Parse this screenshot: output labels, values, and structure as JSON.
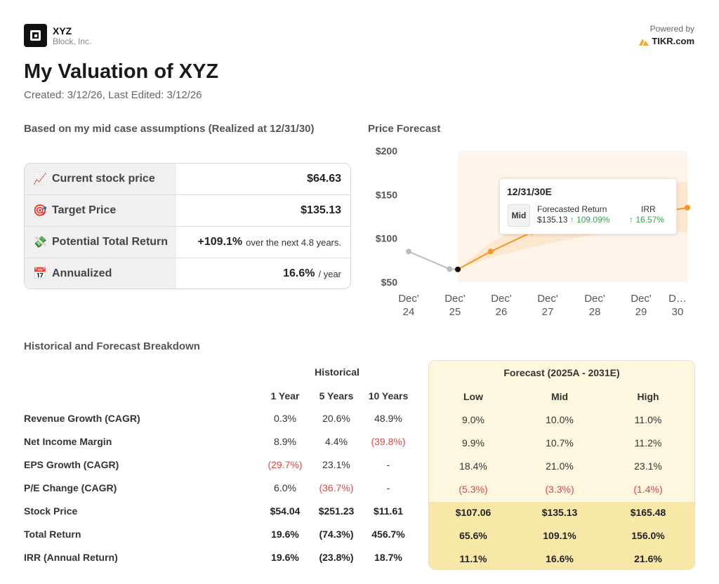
{
  "header": {
    "ticker": "XYZ",
    "company": "Block, Inc.",
    "powered_by": "Powered by",
    "brand": "TIKR.com",
    "title": "My Valuation of XYZ",
    "subtitle": "Created: 3/12/26, Last Edited: 3/12/26"
  },
  "valuation": {
    "heading": "Based on my mid case assumptions (Realized at 12/31/30)",
    "rows": [
      {
        "icon": "chart-increasing-icon",
        "emoji": "📈",
        "label": "Current stock price",
        "value": "$64.63",
        "suffix": ""
      },
      {
        "icon": "target-icon",
        "emoji": "🎯",
        "label": "Target Price",
        "value": "$135.13",
        "suffix": ""
      },
      {
        "icon": "money-icon",
        "emoji": "💸",
        "label": "Potential Total Return",
        "value": "+109.1%",
        "suffix": "over the next 4.8 years."
      },
      {
        "icon": "calendar-icon",
        "emoji": "📅",
        "label": "Annualized",
        "value": "16.6%",
        "suffix": "/ year"
      }
    ]
  },
  "price_forecast": {
    "heading": "Price Forecast",
    "tooltip": {
      "date": "12/31/30E",
      "case": "Mid",
      "col1_label": "Forecasted Return",
      "col1_value": "$135.13",
      "col1_change": "↑ 109.09%",
      "col2_label": "IRR",
      "col2_value": "↑ 16.57%"
    }
  },
  "chart_data": {
    "type": "line",
    "title": "Price Forecast",
    "y_ticks": [
      "$200",
      "$150",
      "$100",
      "$50"
    ],
    "ylim": [
      50,
      200
    ],
    "x_ticks": [
      {
        "top": "Dec'",
        "bottom": "24"
      },
      {
        "top": "Dec'",
        "bottom": "25"
      },
      {
        "top": "Dec'",
        "bottom": "26"
      },
      {
        "top": "Dec'",
        "bottom": "27"
      },
      {
        "top": "Dec'",
        "bottom": "28"
      },
      {
        "top": "Dec'",
        "bottom": "29"
      },
      {
        "top": "D…",
        "bottom": "30"
      }
    ],
    "historical": {
      "x": [
        2024,
        2025
      ],
      "y": [
        85,
        65
      ]
    },
    "current": {
      "x": 2025.2,
      "y": 64.63
    },
    "forecast_mid": {
      "x": [
        2025.2,
        2026,
        2027,
        2030.8
      ],
      "y": [
        64.63,
        85,
        107,
        135.13
      ]
    },
    "band_low": {
      "x": [
        2025.2,
        2026,
        2027,
        2028,
        2029,
        2030.8
      ],
      "y": [
        64.63,
        78,
        90,
        100,
        108,
        107
      ]
    },
    "band_high": {
      "x": [
        2025.2,
        2026,
        2027,
        2028,
        2029,
        2030.8
      ],
      "y": [
        64.63,
        95,
        120,
        140,
        155,
        165
      ]
    },
    "colors": {
      "historical": "#bbbbbb",
      "forecast": "#f5961e",
      "band": "#fde3c8",
      "shade": "#fff4ea"
    }
  },
  "breakdown": {
    "heading": "Historical and Forecast Breakdown",
    "historical_group": "Historical",
    "forecast_group": "Forecast (2025A - 2031E)",
    "hist_cols": [
      "1 Year",
      "5 Years",
      "10 Years"
    ],
    "fc_cols": [
      "Low",
      "Mid",
      "High"
    ],
    "rows": [
      {
        "label": "Revenue Growth (CAGR)",
        "hist": [
          "0.3%",
          "20.6%",
          "48.9%"
        ],
        "fc": [
          "9.0%",
          "10.0%",
          "11.0%"
        ],
        "bold": false
      },
      {
        "label": "Net Income Margin",
        "hist": [
          "8.9%",
          "4.4%",
          "(39.8%)"
        ],
        "fc": [
          "9.9%",
          "10.7%",
          "11.2%"
        ],
        "bold": false
      },
      {
        "label": "EPS Growth (CAGR)",
        "hist": [
          "(29.7%)",
          "23.1%",
          "-"
        ],
        "fc": [
          "18.4%",
          "21.0%",
          "23.1%"
        ],
        "bold": false
      },
      {
        "label": "P/E Change (CAGR)",
        "hist": [
          "6.0%",
          "(36.7%)",
          "-"
        ],
        "fc": [
          "(5.3%)",
          "(3.3%)",
          "(1.4%)"
        ],
        "bold": false
      },
      {
        "label": "Stock Price",
        "hist": [
          "$54.04",
          "$251.23",
          "$11.61"
        ],
        "fc": [
          "$107.06",
          "$135.13",
          "$165.48"
        ],
        "bold": true
      },
      {
        "label": "Total Return",
        "hist": [
          "19.6%",
          "(74.3%)",
          "456.7%"
        ],
        "fc": [
          "65.6%",
          "109.1%",
          "156.0%"
        ],
        "bold": true
      },
      {
        "label": "IRR (Annual Return)",
        "hist": [
          "19.6%",
          "(23.8%)",
          "18.7%"
        ],
        "fc": [
          "11.1%",
          "16.6%",
          "21.6%"
        ],
        "bold": true
      }
    ]
  }
}
